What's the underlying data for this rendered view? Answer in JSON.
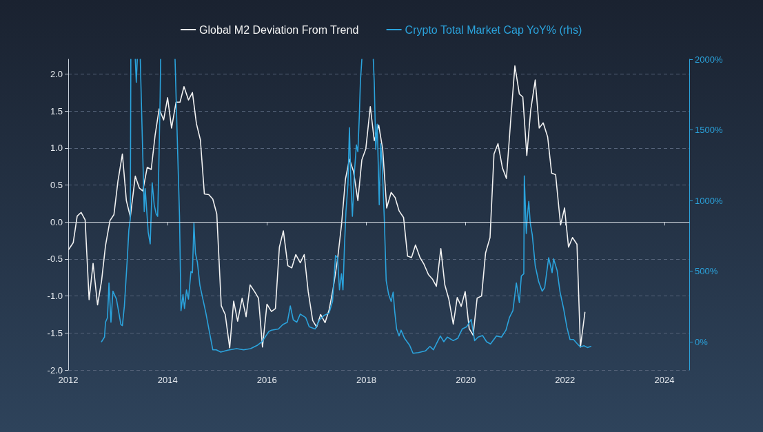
{
  "chart_data": {
    "type": "line",
    "legend": "top",
    "grid": "y",
    "marker": "none",
    "line_style": "solid",
    "xlim": [
      2012,
      2024.5
    ],
    "xticks": [
      2012,
      2014,
      2016,
      2018,
      2020,
      2022,
      2024
    ],
    "ylim": [
      -2.0,
      2.2
    ],
    "yticks": [
      {
        "value": -2,
        "label": "-2.0"
      },
      {
        "value": -1.5,
        "label": "-1.5"
      },
      {
        "value": -1,
        "label": "-1.0"
      },
      {
        "value": -0.5,
        "label": "-0.5"
      },
      {
        "value": 0,
        "label": "0.0"
      },
      {
        "value": 0.5,
        "label": "0.5"
      },
      {
        "value": 1,
        "label": "1.0"
      },
      {
        "value": 1.5,
        "label": "1.5"
      },
      {
        "value": 2,
        "label": "2.0"
      }
    ],
    "y2lim": [
      -200,
      2000
    ],
    "y2ticks": [
      {
        "value": 0,
        "label": "0%"
      },
      {
        "value": 500,
        "label": "500%"
      },
      {
        "value": 1000,
        "label": "1000%"
      },
      {
        "value": 1500,
        "label": "1500%"
      },
      {
        "value": 2000,
        "label": "2000%"
      }
    ],
    "ref_lines": [
      {
        "axis": "y",
        "value": 0,
        "label": null,
        "color": "#dfe4ea",
        "line_style": "solid"
      }
    ],
    "series": [
      {
        "name": "Global M2 Deviation From Trend",
        "color": "#f2f2f2",
        "x": [
          2012.01,
          2012.1,
          2012.18,
          2012.26,
          2012.34,
          2012.42,
          2012.5,
          2012.59,
          2012.67,
          2012.75,
          2012.84,
          2012.92,
          2013.0,
          2013.09,
          2013.17,
          2013.25,
          2013.35,
          2013.43,
          2013.5,
          2013.59,
          2013.67,
          2013.75,
          2013.83,
          2013.92,
          2014.0,
          2014.08,
          2014.17,
          2014.25,
          2014.33,
          2014.42,
          2014.5,
          2014.58,
          2014.66,
          2014.74,
          2014.83,
          2014.91,
          2014.99,
          2015.08,
          2015.16,
          2015.25,
          2015.33,
          2015.41,
          2015.5,
          2015.58,
          2015.66,
          2015.75,
          2015.83,
          2015.91,
          2016.0,
          2016.09,
          2016.17,
          2016.25,
          2016.33,
          2016.42,
          2016.5,
          2016.58,
          2016.67,
          2016.75,
          2016.83,
          2016.92,
          2017.0,
          2017.08,
          2017.17,
          2017.25,
          2017.33,
          2017.42,
          2017.5,
          2017.58,
          2017.66,
          2017.74,
          2017.83,
          2017.91,
          2017.99,
          2018.08,
          2018.16,
          2018.25,
          2018.33,
          2018.41,
          2018.5,
          2018.58,
          2018.66,
          2018.75,
          2018.83,
          2018.91,
          2018.99,
          2019.08,
          2019.16,
          2019.25,
          2019.33,
          2019.41,
          2019.5,
          2019.58,
          2019.66,
          2019.75,
          2019.83,
          2019.91,
          2019.99,
          2020.07,
          2020.15,
          2020.23,
          2020.32,
          2020.4,
          2020.49,
          2020.57,
          2020.65,
          2020.74,
          2020.82,
          2020.9,
          2020.99,
          2021.08,
          2021.15,
          2021.23,
          2021.31,
          2021.4,
          2021.48,
          2021.56,
          2021.65,
          2021.73,
          2021.81,
          2021.91,
          2021.99,
          2022.07,
          2022.15,
          2022.24,
          2022.31,
          2022.4
        ],
        "values": [
          -0.37,
          -0.28,
          0.08,
          0.13,
          0.03,
          -1.05,
          -0.56,
          -1.12,
          -0.8,
          -0.32,
          0.02,
          0.1,
          0.55,
          0.92,
          0.29,
          0.07,
          0.62,
          0.46,
          0.42,
          0.74,
          0.71,
          1.18,
          1.53,
          1.38,
          1.68,
          1.27,
          1.62,
          1.62,
          1.83,
          1.65,
          1.75,
          1.33,
          1.11,
          0.38,
          0.37,
          0.31,
          0.11,
          -1.13,
          -1.25,
          -1.7,
          -1.07,
          -1.34,
          -1.03,
          -1.28,
          -0.85,
          -0.94,
          -1.03,
          -1.69,
          -1.11,
          -1.21,
          -1.17,
          -0.34,
          -0.12,
          -0.59,
          -0.62,
          -0.44,
          -0.55,
          -0.44,
          -0.94,
          -1.33,
          -1.42,
          -1.25,
          -1.36,
          -1.19,
          -0.91,
          -0.51,
          -0.04,
          0.58,
          0.85,
          0.69,
          0.29,
          0.84,
          0.99,
          1.56,
          1.1,
          1.31,
          0.98,
          0.19,
          0.4,
          0.33,
          0.15,
          0.06,
          -0.46,
          -0.48,
          -0.31,
          -0.48,
          -0.57,
          -0.71,
          -0.77,
          -0.87,
          -0.36,
          -0.85,
          -1.04,
          -1.38,
          -1.02,
          -1.14,
          -0.94,
          -1.44,
          -1.53,
          -1.03,
          -1.0,
          -0.42,
          -0.21,
          0.92,
          1.06,
          0.73,
          0.59,
          1.32,
          2.11,
          1.73,
          1.69,
          0.9,
          1.52,
          1.92,
          1.27,
          1.34,
          1.15,
          0.66,
          0.64,
          -0.04,
          0.19,
          -0.34,
          -0.21,
          -0.3,
          -1.69,
          -1.22
        ]
      },
      {
        "name": "Crypto Total Market Cap YoY% (rhs)",
        "color": "#2ba3dc",
        "axis": "y2",
        "x": [
          2012.67,
          2012.73,
          2012.75,
          2012.79,
          2012.82,
          2012.86,
          2012.9,
          2012.97,
          2013.06,
          2013.09,
          2013.13,
          2013.19,
          2013.22,
          2013.25,
          2013.26,
          2013.3,
          2013.35,
          2013.37,
          2013.39,
          2013.42,
          2013.45,
          2013.49,
          2013.53,
          2013.55,
          2013.61,
          2013.65,
          2013.69,
          2013.73,
          2013.77,
          2013.8,
          2013.82,
          2013.85,
          2013.86,
          2014.0,
          2014.15,
          2014.18,
          2014.24,
          2014.27,
          2014.31,
          2014.34,
          2014.38,
          2014.42,
          2014.47,
          2014.5,
          2014.53,
          2014.56,
          2014.6,
          2014.65,
          2014.71,
          2014.77,
          2014.84,
          2014.91,
          2014.98,
          2015.07,
          2015.21,
          2015.39,
          2015.53,
          2015.67,
          2015.81,
          2015.9,
          2016.04,
          2016.09,
          2016.23,
          2016.32,
          2016.41,
          2016.47,
          2016.53,
          2016.6,
          2016.67,
          2016.78,
          2016.85,
          2016.97,
          2017.06,
          2017.15,
          2017.25,
          2017.32,
          2017.38,
          2017.42,
          2017.46,
          2017.5,
          2017.53,
          2017.56,
          2017.59,
          2017.63,
          2017.66,
          2017.69,
          2017.72,
          2017.76,
          2017.8,
          2017.83,
          2017.86,
          2017.88,
          2017.91,
          2018.0,
          2018.14,
          2018.16,
          2018.19,
          2018.22,
          2018.26,
          2018.29,
          2018.32,
          2018.36,
          2018.4,
          2018.45,
          2018.5,
          2018.54,
          2018.57,
          2018.61,
          2018.66,
          2018.7,
          2018.77,
          2018.87,
          2018.94,
          2019.05,
          2019.19,
          2019.28,
          2019.35,
          2019.49,
          2019.56,
          2019.63,
          2019.75,
          2019.84,
          2019.93,
          2020.02,
          2020.11,
          2020.18,
          2020.25,
          2020.34,
          2020.42,
          2020.5,
          2020.62,
          2020.72,
          2020.81,
          2020.88,
          2020.95,
          2021.02,
          2021.08,
          2021.12,
          2021.17,
          2021.18,
          2021.22,
          2021.24,
          2021.27,
          2021.3,
          2021.34,
          2021.4,
          2021.47,
          2021.54,
          2021.59,
          2021.67,
          2021.74,
          2021.77,
          2021.84,
          2021.9,
          2021.97,
          2022.04,
          2022.1,
          2022.17,
          2022.25,
          2022.31,
          2022.38,
          2022.45,
          2022.52
        ],
        "values": [
          0,
          33,
          138,
          171,
          416,
          138,
          358,
          302,
          122,
          114,
          253,
          595,
          791,
          872,
          2000,
          null,
          2000,
          1837,
          2000,
          null,
          2000,
          1459,
          921,
          1084,
          774,
          693,
          1125,
          970,
          905,
          888,
          1182,
          1736,
          2000,
          null,
          2000,
          1622,
          888,
          220,
          334,
          236,
          367,
          302,
          497,
          489,
          839,
          627,
          562,
          400,
          302,
          204,
          73,
          -57,
          -57,
          -73,
          -60,
          -49,
          -57,
          -49,
          -24,
          0,
          73,
          82,
          90,
          122,
          138,
          253,
          155,
          138,
          196,
          171,
          106,
          90,
          155,
          187,
          204,
          285,
          611,
          595,
          367,
          481,
          367,
          676,
          921,
          1116,
          1516,
          1116,
          888,
          1198,
          1394,
          1345,
          1605,
          1834,
          2000,
          null,
          2000,
          1834,
          1361,
          1540,
          970,
          1402,
          1247,
          888,
          432,
          334,
          285,
          351,
          220,
          90,
          41,
          82,
          24,
          -24,
          -82,
          -77,
          -65,
          -33,
          -57,
          41,
          0,
          33,
          8,
          24,
          90,
          106,
          158,
          8,
          33,
          44,
          0,
          -16,
          41,
          33,
          82,
          171,
          220,
          416,
          277,
          465,
          481,
          1174,
          766,
          880,
          994,
          839,
          758,
          538,
          424,
          358,
          383,
          595,
          489,
          587,
          505,
          351,
          236,
          98,
          16,
          16,
          -16,
          -37,
          -28,
          -41,
          -33
        ]
      }
    ]
  }
}
